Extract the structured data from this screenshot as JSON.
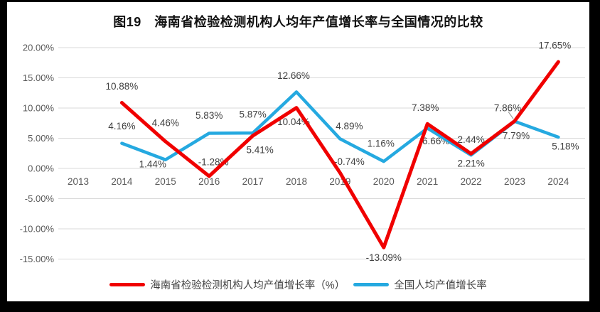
{
  "figure": {
    "title": "图19　海南省检验检测机构人均年产值增长率与全国情况的比较"
  },
  "chart_data": {
    "type": "line",
    "title": "图19　海南省检验检测机构人均年产值增长率与全国情况的比较",
    "categories": [
      "2013",
      "2014",
      "2015",
      "2016",
      "2017",
      "2018",
      "2019",
      "2020",
      "2021",
      "2022",
      "2023",
      "2024"
    ],
    "ylim": [
      -15,
      20
    ],
    "ytick_step": 5,
    "ytick_labels": [
      "20.00%",
      "15.00%",
      "10.00%",
      "5.00%",
      "0.00%",
      "-5.00%",
      "-10.00%",
      "-15.00%"
    ],
    "grid": true,
    "legend_position": "bottom",
    "series": [
      {
        "name": "海南省检验检测机构人均产值增长率（%）",
        "color": "#F00000",
        "values": [
          null,
          10.88,
          4.46,
          -1.28,
          5.41,
          10.04,
          -0.74,
          -13.09,
          7.38,
          2.44,
          7.86,
          17.65
        ],
        "label_offsets": [
          [
            0,
            0
          ],
          [
            0,
            -23
          ],
          [
            0,
            -26
          ],
          [
            6,
            -20
          ],
          [
            10,
            20
          ],
          [
            -4,
            20
          ],
          [
            13,
            -16
          ],
          [
            0,
            14
          ],
          [
            -3,
            -23
          ],
          [
            0,
            -20
          ],
          [
            -10,
            -18
          ],
          [
            -5,
            -23
          ]
        ]
      },
      {
        "name": "全国人均产值增长率",
        "color": "#25A9E0",
        "values": [
          null,
          4.16,
          1.44,
          5.83,
          5.87,
          12.66,
          4.89,
          1.16,
          6.66,
          2.21,
          7.79,
          5.18
        ],
        "label_offsets": [
          [
            0,
            0
          ],
          [
            0,
            -24
          ],
          [
            -18,
            6
          ],
          [
            0,
            -25
          ],
          [
            0,
            -26
          ],
          [
            -4,
            -23
          ],
          [
            13,
            -18
          ],
          [
            -4,
            -25
          ],
          [
            12,
            18
          ],
          [
            0,
            12
          ],
          [
            2,
            20
          ],
          [
            10,
            13
          ]
        ]
      }
    ],
    "callout_leader": {
      "series": 0,
      "index": 10
    }
  },
  "colors": {
    "grid": "#D9D9D9",
    "axis_text": "#595959",
    "label_text": "#404040",
    "title_text": "#111111",
    "leader": "#999999",
    "page_border": "#000000",
    "panel_bg": "#FFFFFF"
  }
}
